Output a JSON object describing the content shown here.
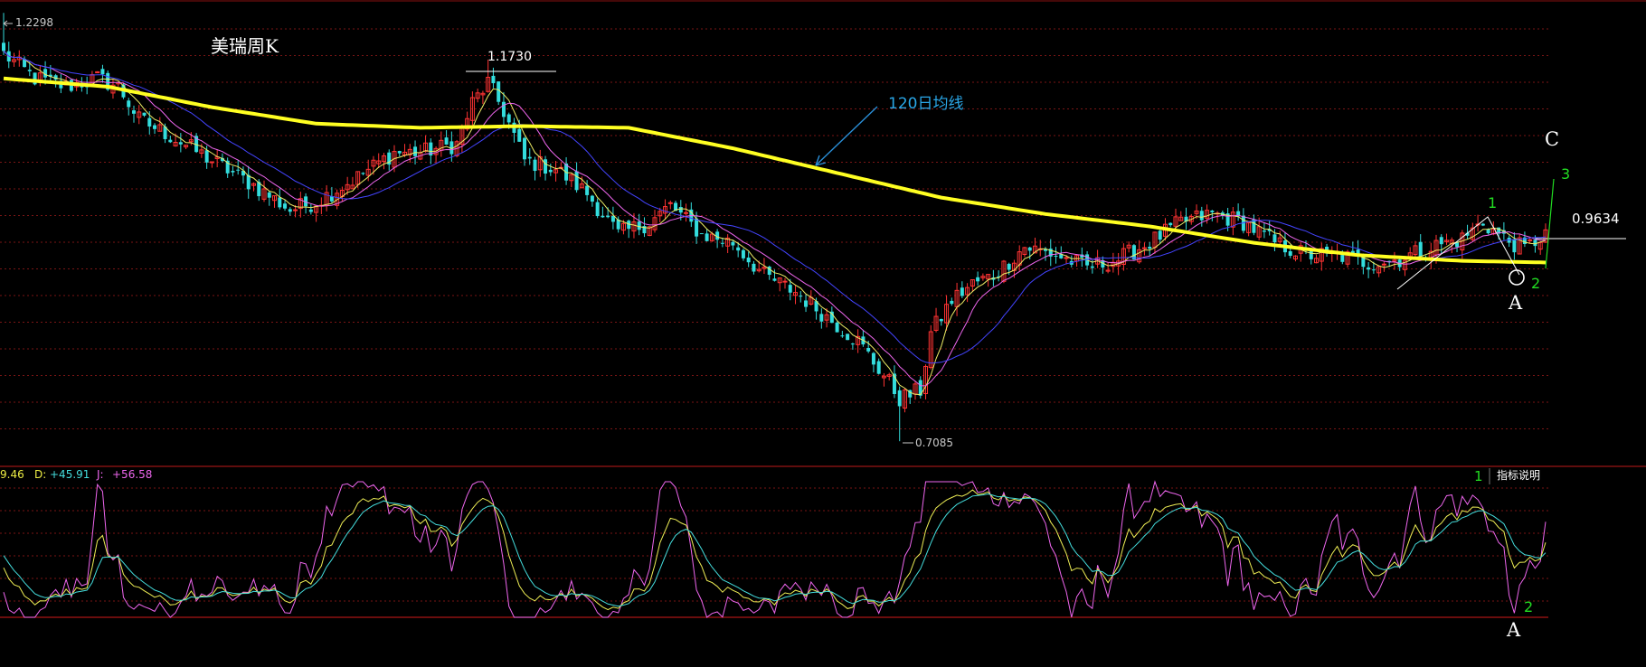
{
  "chart_data": {
    "type": "candlestick",
    "title": "美瑞周K",
    "price_high": "1.2298",
    "price_low": "0.7085",
    "peak_label": "1.1730",
    "last_price": "0.9634",
    "ma_label": "120日均线",
    "indicator_header": {
      "k": "9.46",
      "d_label": "D:",
      "d": "+45.91",
      "j_label": "J:",
      "j": "+56.58"
    },
    "indicator_button": "指标说明",
    "ylim": [
      0.69,
      1.24
    ],
    "annotations": {
      "c": "C",
      "wave1": "1",
      "wave2": "2",
      "wave3": "3",
      "a": "A",
      "sub1": "1",
      "sub2": "2",
      "subA": "A"
    },
    "close_anchors": [
      [
        0,
        1.18
      ],
      [
        6,
        1.15
      ],
      [
        12,
        1.14
      ],
      [
        18,
        1.15
      ],
      [
        22,
        1.14
      ],
      [
        26,
        1.1
      ],
      [
        32,
        1.08
      ],
      [
        40,
        1.05
      ],
      [
        48,
        1.02
      ],
      [
        55,
        0.99
      ],
      [
        60,
        1.0
      ],
      [
        68,
        1.03
      ],
      [
        75,
        1.06
      ],
      [
        80,
        1.06
      ],
      [
        87,
        1.07
      ],
      [
        90,
        1.12
      ],
      [
        93,
        1.145
      ],
      [
        96,
        1.11
      ],
      [
        100,
        1.05
      ],
      [
        106,
        1.04
      ],
      [
        112,
        1.01
      ],
      [
        118,
        0.96
      ],
      [
        124,
        0.975
      ],
      [
        128,
        0.995
      ],
      [
        134,
        0.96
      ],
      [
        140,
        0.95
      ],
      [
        146,
        0.91
      ],
      [
        152,
        0.89
      ],
      [
        158,
        0.86
      ],
      [
        164,
        0.83
      ],
      [
        170,
        0.78
      ],
      [
        172,
        0.76
      ],
      [
        176,
        0.77
      ],
      [
        178,
        0.84
      ],
      [
        182,
        0.88
      ],
      [
        186,
        0.9
      ],
      [
        190,
        0.91
      ],
      [
        196,
        0.945
      ],
      [
        202,
        0.935
      ],
      [
        208,
        0.92
      ],
      [
        214,
        0.93
      ],
      [
        220,
        0.95
      ],
      [
        226,
        0.975
      ],
      [
        232,
        0.985
      ],
      [
        238,
        0.975
      ],
      [
        244,
        0.95
      ],
      [
        250,
        0.935
      ],
      [
        256,
        0.935
      ],
      [
        262,
        0.925
      ],
      [
        268,
        0.93
      ],
      [
        274,
        0.945
      ],
      [
        280,
        0.955
      ],
      [
        284,
        0.975
      ],
      [
        288,
        0.955
      ],
      [
        292,
        0.942
      ],
      [
        296,
        0.962
      ]
    ],
    "ma120_anchors": [
      [
        0,
        1.15
      ],
      [
        20,
        1.14
      ],
      [
        40,
        1.115
      ],
      [
        60,
        1.095
      ],
      [
        80,
        1.09
      ],
      [
        100,
        1.092
      ],
      [
        120,
        1.09
      ],
      [
        140,
        1.065
      ],
      [
        160,
        1.035
      ],
      [
        180,
        1.005
      ],
      [
        200,
        0.985
      ],
      [
        220,
        0.97
      ],
      [
        240,
        0.95
      ],
      [
        260,
        0.935
      ],
      [
        280,
        0.928
      ],
      [
        296,
        0.926
      ]
    ]
  }
}
